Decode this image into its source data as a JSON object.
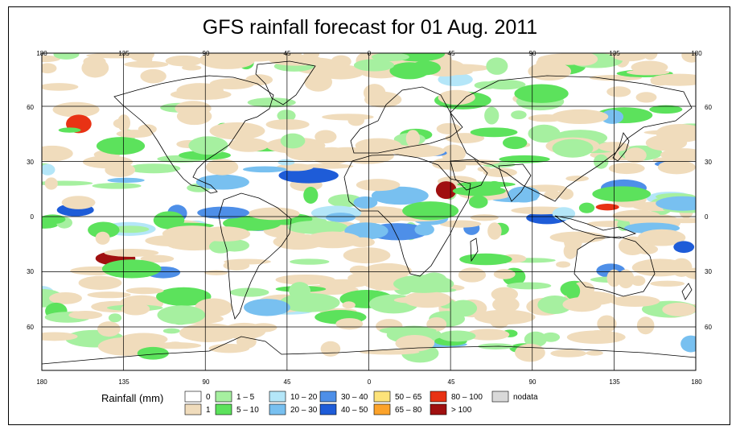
{
  "title": "GFS rainfall forecast for 01 Aug. 2011",
  "map": {
    "longitude_ticks": [
      "180",
      "135",
      "90",
      "45",
      "0",
      "45",
      "90",
      "135",
      "180"
    ],
    "latitude_ticks": [
      "60",
      "30",
      "0",
      "30",
      "60"
    ],
    "projection": "equirectangular",
    "grid": true
  },
  "legend": {
    "title": "Rainfall (mm)",
    "items": [
      {
        "label": "0",
        "color": "#ffffff"
      },
      {
        "label": "1",
        "color": "#f0dcbc"
      },
      {
        "label": "1 – 5",
        "color": "#a6f0a0"
      },
      {
        "label": "5 – 10",
        "color": "#5ce25c"
      },
      {
        "label": "10 – 20",
        "color": "#b4e6f8"
      },
      {
        "label": "20 – 30",
        "color": "#78c0f0"
      },
      {
        "label": "30 – 40",
        "color": "#4e8fe8"
      },
      {
        "label": "40 – 50",
        "color": "#1e5cd8"
      },
      {
        "label": "50 – 65",
        "color": "#fde37a"
      },
      {
        "label": "65 – 80",
        "color": "#fca32a"
      },
      {
        "label": "80 – 100",
        "color": "#e83214"
      },
      {
        "label": "> 100",
        "color": "#a01010"
      },
      {
        "label": "nodata",
        "color": "#d9d9d9"
      }
    ]
  }
}
